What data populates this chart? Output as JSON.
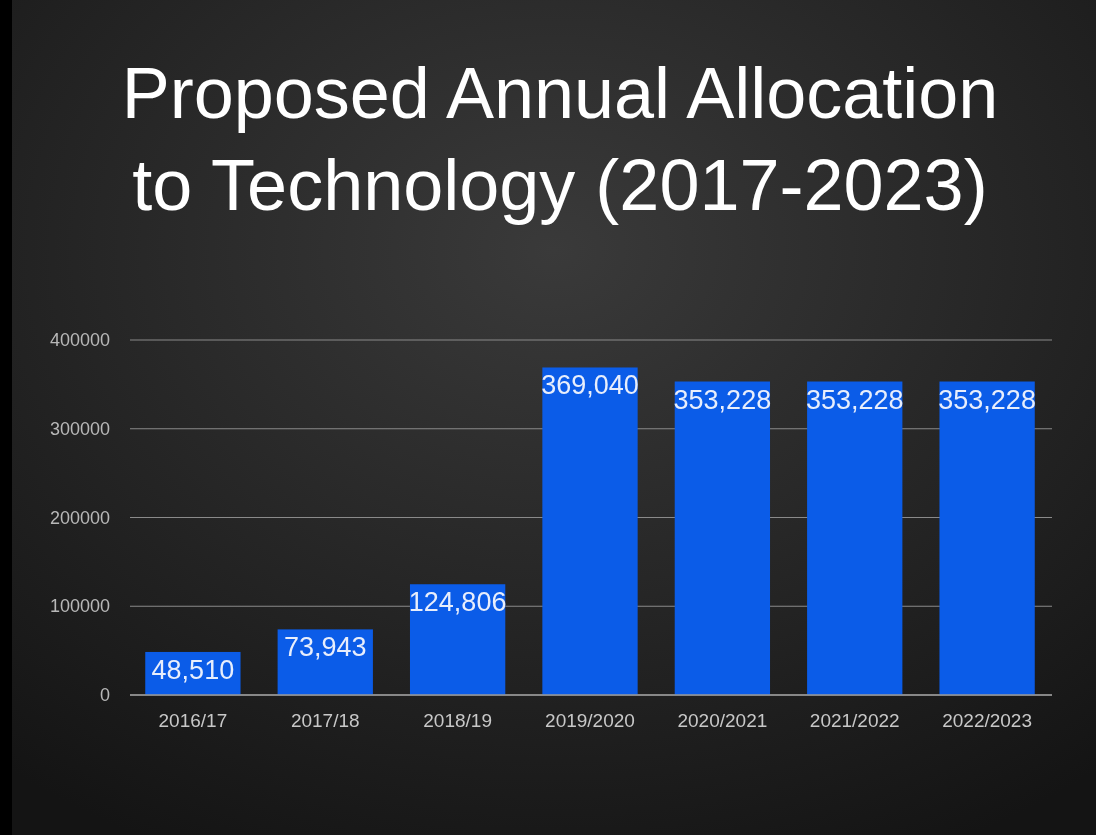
{
  "chart_data": {
    "type": "bar",
    "title": "Proposed Annual Allocation to Technology (2017-2023)",
    "categories": [
      "2016/17",
      "2017/18",
      "2018/19",
      "2019/2020",
      "2020/2021",
      "2021/2022",
      "2022/2023"
    ],
    "values": [
      48510,
      73943,
      124806,
      369040,
      353228,
      353228,
      353228
    ],
    "value_labels": [
      "48,510",
      "73,943",
      "124,806",
      "369,040",
      "353,228",
      "353,228",
      "353,228"
    ],
    "color": "#0b5ce8",
    "ylim": [
      0,
      400000
    ],
    "yticks": [
      0,
      100000,
      200000,
      300000,
      400000
    ],
    "grid": "y"
  }
}
